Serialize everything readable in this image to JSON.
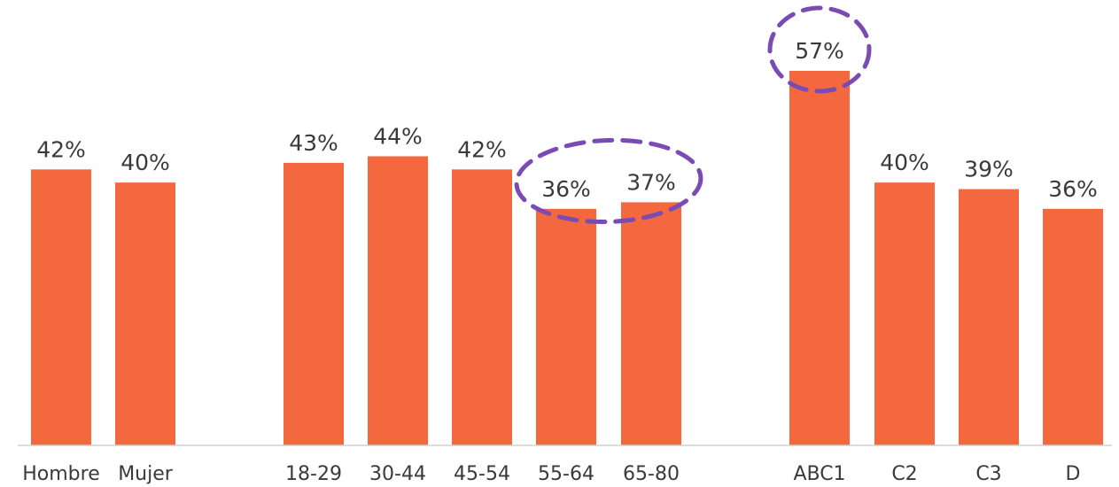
{
  "chart_data": {
    "type": "bar",
    "categories": [
      "Hombre",
      "Mujer",
      "18-29",
      "30-44",
      "45-54",
      "55-64",
      "65-80",
      "ABC1",
      "C2",
      "C3",
      "D"
    ],
    "values": [
      42,
      40,
      43,
      44,
      42,
      36,
      37,
      57,
      40,
      39,
      36
    ],
    "value_labels": [
      "42%",
      "40%",
      "43%",
      "44%",
      "42%",
      "36%",
      "37%",
      "57%",
      "40%",
      "39%",
      "36%"
    ],
    "groups": [
      [
        "Hombre",
        "Mujer"
      ],
      [
        "18-29",
        "30-44",
        "45-54",
        "55-64",
        "65-80"
      ],
      [
        "ABC1",
        "C2",
        "C3",
        "D"
      ]
    ],
    "highlighted": [
      [
        "55-64",
        "65-80"
      ],
      [
        "ABC1"
      ]
    ],
    "unit": "%",
    "ylim": [
      0,
      57
    ],
    "title": "",
    "xlabel": "",
    "ylabel": "",
    "grid": false,
    "legend": "none",
    "colors": {
      "bar": "#F4683F",
      "highlight": "#7B4BB4",
      "text": "#3a3a3a",
      "axis": "#d0d0d0"
    }
  }
}
